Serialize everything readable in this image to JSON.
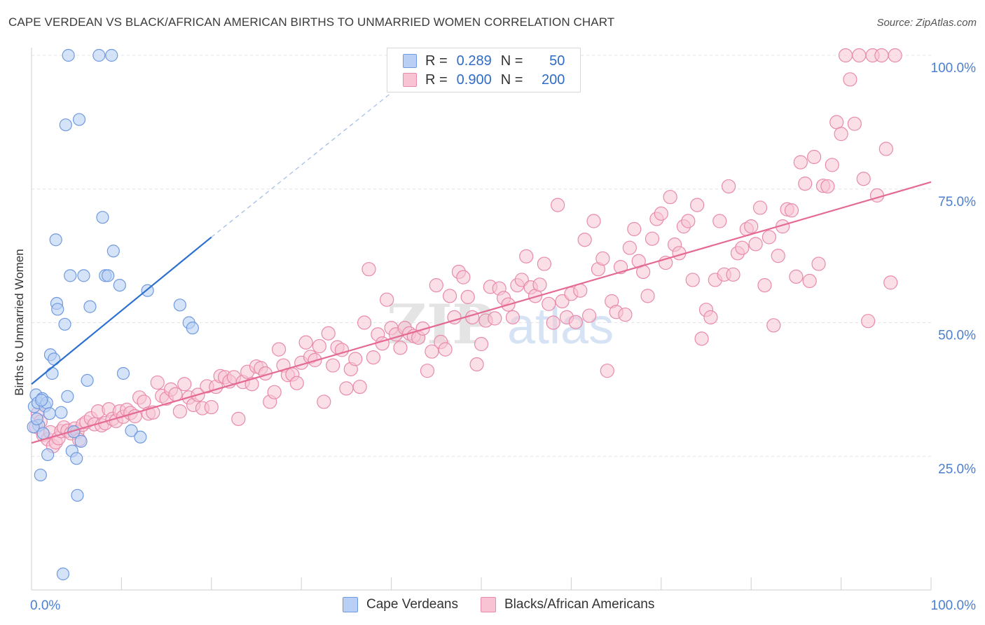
{
  "title": "CAPE VERDEAN VS BLACK/AFRICAN AMERICAN BIRTHS TO UNMARRIED WOMEN CORRELATION CHART",
  "source": "Source: ZipAtlas.com",
  "legend_top": {
    "rows": [
      {
        "r_label": "R =",
        "r_value": "0.289",
        "n_label": "N =",
        "n_value": "50"
      },
      {
        "r_label": "R =",
        "r_value": "0.900",
        "n_label": "N =",
        "n_value": "200"
      }
    ]
  },
  "legend_bottom": {
    "items": [
      {
        "label": "Cape Verdeans"
      },
      {
        "label": "Blacks/African Americans"
      }
    ]
  },
  "colors": {
    "blue_fill": "#b9d0f4",
    "blue_stroke": "#6f9ae0",
    "blue_line": "#2b70d0",
    "pink_fill": "#f8c4d4",
    "pink_stroke": "#e88aab",
    "pink_line": "#e46a94",
    "tick_label": "#4a7fd1",
    "grid": "#e3e3e3"
  },
  "chart_data": {
    "type": "scatter",
    "title": "CAPE VERDEAN VS BLACK/AFRICAN AMERICAN BIRTHS TO UNMARRIED WOMEN CORRELATION CHART",
    "xlabel": "",
    "ylabel": "Births to Unmarried Women",
    "xlim": [
      0,
      100
    ],
    "ylim": [
      0,
      100
    ],
    "x_tick_labels": [
      "0.0%",
      "100.0%"
    ],
    "y_tick_labels": [
      "25.0%",
      "50.0%",
      "75.0%",
      "100.0%"
    ],
    "y_ticks": [
      25,
      50,
      75,
      100
    ],
    "grid": true,
    "legend": "bottom",
    "watermark": "ZIPatlas",
    "series": [
      {
        "name": "Cape Verdeans",
        "r": 0.289,
        "n": 50,
        "trend": {
          "x0": 0,
          "y0": 38.5,
          "x1": 20,
          "y1": 66,
          "dashed_to": {
            "x": 40,
            "y": 93
          }
        },
        "points": [
          [
            0.3,
            34.3
          ],
          [
            0.5,
            36.5
          ],
          [
            0.7,
            35.0
          ],
          [
            0.8,
            30.8
          ],
          [
            1.0,
            21.5
          ],
          [
            1.2,
            35.8
          ],
          [
            1.3,
            29.3
          ],
          [
            1.5,
            34.4
          ],
          [
            1.7,
            35.0
          ],
          [
            1.8,
            25.3
          ],
          [
            2.0,
            33.0
          ],
          [
            2.1,
            44.0
          ],
          [
            2.3,
            40.5
          ],
          [
            2.5,
            43.2
          ],
          [
            2.7,
            65.5
          ],
          [
            2.8,
            53.6
          ],
          [
            2.9,
            52.5
          ],
          [
            3.3,
            33.2
          ],
          [
            3.5,
            3.0
          ],
          [
            3.7,
            49.7
          ],
          [
            3.8,
            87.0
          ],
          [
            4.0,
            36.2
          ],
          [
            4.1,
            100
          ],
          [
            4.3,
            58.8
          ],
          [
            4.5,
            26.0
          ],
          [
            4.7,
            29.6
          ],
          [
            5.0,
            24.6
          ],
          [
            5.1,
            17.7
          ],
          [
            5.3,
            88.0
          ],
          [
            5.5,
            27.8
          ],
          [
            5.8,
            58.8
          ],
          [
            6.2,
            39.2
          ],
          [
            6.5,
            53.0
          ],
          [
            7.5,
            100
          ],
          [
            7.9,
            69.7
          ],
          [
            8.2,
            58.8
          ],
          [
            8.5,
            58.8
          ],
          [
            8.9,
            100
          ],
          [
            9.1,
            63.4
          ],
          [
            9.8,
            57.0
          ],
          [
            10.2,
            40.5
          ],
          [
            11.1,
            29.8
          ],
          [
            12.1,
            28.6
          ],
          [
            12.9,
            56.0
          ],
          [
            16.5,
            53.3
          ],
          [
            17.5,
            50.0
          ],
          [
            17.9,
            49.0
          ],
          [
            0.2,
            30.5
          ],
          [
            0.6,
            32.0
          ],
          [
            1.1,
            35.5
          ]
        ]
      },
      {
        "name": "Blacks/African Americans",
        "r": 0.9,
        "n": 200,
        "trend": {
          "x0": 0,
          "y0": 27.5,
          "x1": 100,
          "y1": 76.3
        },
        "points": [
          [
            0.5,
            30.5
          ],
          [
            0.7,
            33.0
          ],
          [
            1.0,
            31.5
          ],
          [
            1.3,
            29.0
          ],
          [
            1.8,
            28.2
          ],
          [
            2.1,
            29.5
          ],
          [
            2.4,
            26.9
          ],
          [
            2.7,
            27.6
          ],
          [
            3.0,
            28.4
          ],
          [
            3.3,
            29.7
          ],
          [
            3.6,
            30.4
          ],
          [
            4.0,
            29.8
          ],
          [
            4.4,
            29.3
          ],
          [
            4.8,
            30.2
          ],
          [
            5.1,
            29.6
          ],
          [
            5.3,
            28.1
          ],
          [
            5.7,
            30.9
          ],
          [
            6.1,
            31.4
          ],
          [
            6.6,
            32.1
          ],
          [
            7.0,
            31.0
          ],
          [
            7.4,
            33.4
          ],
          [
            7.8,
            30.8
          ],
          [
            8.2,
            31.2
          ],
          [
            8.6,
            33.8
          ],
          [
            9.0,
            32.0
          ],
          [
            9.4,
            31.6
          ],
          [
            9.8,
            33.4
          ],
          [
            10.2,
            32.4
          ],
          [
            10.6,
            33.7
          ],
          [
            11.0,
            33.1
          ],
          [
            11.5,
            32.5
          ],
          [
            12.0,
            36.0
          ],
          [
            12.5,
            35.2
          ],
          [
            13.0,
            33.0
          ],
          [
            13.5,
            33.2
          ],
          [
            14.0,
            38.8
          ],
          [
            14.5,
            36.3
          ],
          [
            15.0,
            35.8
          ],
          [
            15.5,
            37.5
          ],
          [
            16.0,
            36.6
          ],
          [
            16.5,
            33.4
          ],
          [
            17.0,
            38.5
          ],
          [
            17.5,
            36.0
          ],
          [
            18.0,
            34.6
          ],
          [
            18.5,
            36.5
          ],
          [
            19.0,
            34.0
          ],
          [
            19.5,
            38.1
          ],
          [
            20.0,
            34.2
          ],
          [
            20.5,
            38.0
          ],
          [
            21.0,
            40.0
          ],
          [
            21.5,
            39.8
          ],
          [
            22.0,
            39.0
          ],
          [
            22.5,
            39.8
          ],
          [
            23.0,
            32.0
          ],
          [
            23.5,
            38.9
          ],
          [
            24.0,
            40.8
          ],
          [
            24.5,
            38.5
          ],
          [
            25.0,
            41.8
          ],
          [
            25.5,
            41.5
          ],
          [
            26.0,
            40.5
          ],
          [
            26.5,
            35.2
          ],
          [
            27.0,
            37.0
          ],
          [
            27.5,
            45.0
          ],
          [
            28.0,
            42.0
          ],
          [
            28.5,
            40.2
          ],
          [
            29.0,
            40.3
          ],
          [
            29.5,
            38.7
          ],
          [
            30.0,
            42.5
          ],
          [
            30.5,
            46.3
          ],
          [
            31.0,
            43.6
          ],
          [
            31.5,
            43.0
          ],
          [
            32.0,
            45.6
          ],
          [
            32.5,
            35.2
          ],
          [
            33.0,
            48.0
          ],
          [
            33.5,
            42.0
          ],
          [
            34.0,
            45.4
          ],
          [
            34.5,
            44.9
          ],
          [
            35.0,
            37.7
          ],
          [
            35.5,
            41.3
          ],
          [
            36.0,
            43.2
          ],
          [
            36.5,
            38.0
          ],
          [
            37.0,
            50.0
          ],
          [
            37.5,
            60.0
          ],
          [
            38.0,
            43.5
          ],
          [
            38.5,
            47.8
          ],
          [
            39.0,
            46.1
          ],
          [
            39.5,
            54.3
          ],
          [
            40.0,
            49.0
          ],
          [
            40.5,
            47.8
          ],
          [
            41.0,
            45.3
          ],
          [
            41.5,
            49.0
          ],
          [
            42.0,
            48.0
          ],
          [
            42.5,
            47.5
          ],
          [
            43.0,
            47.2
          ],
          [
            43.5,
            48.9
          ],
          [
            44.0,
            41.0
          ],
          [
            44.5,
            44.6
          ],
          [
            45.0,
            57.0
          ],
          [
            45.5,
            46.4
          ],
          [
            46.0,
            45.0
          ],
          [
            46.5,
            55.0
          ],
          [
            47.0,
            51.0
          ],
          [
            47.5,
            59.5
          ],
          [
            48.0,
            58.5
          ],
          [
            48.5,
            54.8
          ],
          [
            49.0,
            51.0
          ],
          [
            49.5,
            42.2
          ],
          [
            50.0,
            46.0
          ],
          [
            50.5,
            50.4
          ],
          [
            51.0,
            56.7
          ],
          [
            51.5,
            50.8
          ],
          [
            52.0,
            56.4
          ],
          [
            52.5,
            54.6
          ],
          [
            53.0,
            53.4
          ],
          [
            53.5,
            51.0
          ],
          [
            54.0,
            57.0
          ],
          [
            54.5,
            58.0
          ],
          [
            55.0,
            62.4
          ],
          [
            55.5,
            56.6
          ],
          [
            56.0,
            55.0
          ],
          [
            56.5,
            57.1
          ],
          [
            57.0,
            61.0
          ],
          [
            57.5,
            53.5
          ],
          [
            58.0,
            50.0
          ],
          [
            58.5,
            72.0
          ],
          [
            59.0,
            54.0
          ],
          [
            59.5,
            51.0
          ],
          [
            60.0,
            55.4
          ],
          [
            60.5,
            50.1
          ],
          [
            61.0,
            56.0
          ],
          [
            61.5,
            65.5
          ],
          [
            62.0,
            51.3
          ],
          [
            62.5,
            69.0
          ],
          [
            63.0,
            60.0
          ],
          [
            63.5,
            62.0
          ],
          [
            64.0,
            41.0
          ],
          [
            64.5,
            54.0
          ],
          [
            65.0,
            52.0
          ],
          [
            65.5,
            60.4
          ],
          [
            66.0,
            51.5
          ],
          [
            66.5,
            64.0
          ],
          [
            67.0,
            67.5
          ],
          [
            67.5,
            61.5
          ],
          [
            68.0,
            59.5
          ],
          [
            68.5,
            55.0
          ],
          [
            69.0,
            65.7
          ],
          [
            69.5,
            69.4
          ],
          [
            70.0,
            70.4
          ],
          [
            70.5,
            61.2
          ],
          [
            71.0,
            73.5
          ],
          [
            71.5,
            64.6
          ],
          [
            72.0,
            63.0
          ],
          [
            72.5,
            68.0
          ],
          [
            73.0,
            69.0
          ],
          [
            73.5,
            58.0
          ],
          [
            74.0,
            72.0
          ],
          [
            74.5,
            47.0
          ],
          [
            75.0,
            52.4
          ],
          [
            75.5,
            51.0
          ],
          [
            76.0,
            58.0
          ],
          [
            76.5,
            69.0
          ],
          [
            77.0,
            59.0
          ],
          [
            77.5,
            75.5
          ],
          [
            78.0,
            59.0
          ],
          [
            78.5,
            63.0
          ],
          [
            79.0,
            64.0
          ],
          [
            79.5,
            67.5
          ],
          [
            80.0,
            68.0
          ],
          [
            80.5,
            64.7
          ],
          [
            81.0,
            71.5
          ],
          [
            81.5,
            57.0
          ],
          [
            82.0,
            66.0
          ],
          [
            82.5,
            49.5
          ],
          [
            83.0,
            62.5
          ],
          [
            83.5,
            68.0
          ],
          [
            84.0,
            71.2
          ],
          [
            84.5,
            71.0
          ],
          [
            85.0,
            58.6
          ],
          [
            85.5,
            80.0
          ],
          [
            86.0,
            76.0
          ],
          [
            86.5,
            57.8
          ],
          [
            87.0,
            81.0
          ],
          [
            87.5,
            61.0
          ],
          [
            88.0,
            75.6
          ],
          [
            88.5,
            75.5
          ],
          [
            89.0,
            79.5
          ],
          [
            89.5,
            87.5
          ],
          [
            90.0,
            85.3
          ],
          [
            90.5,
            100
          ],
          [
            91.0,
            95.5
          ],
          [
            91.5,
            87.2
          ],
          [
            92.0,
            100
          ],
          [
            92.5,
            76.9
          ],
          [
            93.0,
            50.3
          ],
          [
            93.5,
            100
          ],
          [
            94.0,
            73.8
          ],
          [
            94.5,
            100
          ],
          [
            95.0,
            82.5
          ],
          [
            95.5,
            57.5
          ],
          [
            96.0,
            100
          ]
        ]
      }
    ]
  }
}
